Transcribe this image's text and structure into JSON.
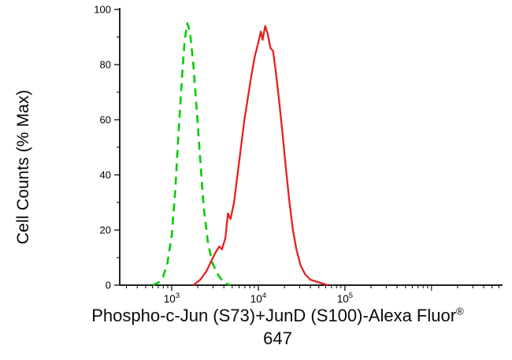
{
  "chart_data": {
    "type": "line",
    "title": "",
    "ylabel": "Cell Counts (% Max)",
    "xlabel_line1": "Phospho-c-Jun (S73)+JunD (S100)-Alexa Fluor",
    "xlabel_registered": "®",
    "xlabel_line2": "647",
    "x_scale": "log",
    "xlim_log": [
      2.4,
      6.82
    ],
    "ylim": [
      0,
      100
    ],
    "grid": false,
    "legend": false,
    "colors": {
      "control": "#00cc00",
      "sample": "#e62020",
      "axis": "#000000",
      "background": "#ffffff"
    },
    "y_ticks": [
      {
        "label": "0",
        "value": 0
      },
      {
        "label": "20",
        "value": 20
      },
      {
        "label": "40",
        "value": 40
      },
      {
        "label": "60",
        "value": 60
      },
      {
        "label": "80",
        "value": 80
      },
      {
        "label": "100",
        "value": 100
      }
    ],
    "y_minor_ticks": [
      10,
      30,
      50,
      70,
      90
    ],
    "x_ticks": [
      {
        "base": "10",
        "exp": "3",
        "log": 3
      },
      {
        "base": "10",
        "exp": "4",
        "log": 4
      },
      {
        "base": "10",
        "exp": "5",
        "log": 5
      }
    ],
    "series": [
      {
        "name": "control-dashed-green",
        "style": "dashed",
        "color": "#00cc00",
        "peak_x": 1500,
        "peak_y_pct": 95,
        "points_log_x_pct_y": [
          [
            2.78,
            0
          ],
          [
            2.85,
            1
          ],
          [
            2.9,
            3
          ],
          [
            2.95,
            8
          ],
          [
            3.0,
            18
          ],
          [
            3.04,
            34
          ],
          [
            3.08,
            56
          ],
          [
            3.12,
            76
          ],
          [
            3.15,
            89
          ],
          [
            3.18,
            95
          ],
          [
            3.21,
            92
          ],
          [
            3.25,
            80
          ],
          [
            3.29,
            63
          ],
          [
            3.33,
            45
          ],
          [
            3.37,
            28
          ],
          [
            3.42,
            15
          ],
          [
            3.47,
            8
          ],
          [
            3.53,
            4
          ],
          [
            3.6,
            1
          ],
          [
            3.68,
            0
          ]
        ]
      },
      {
        "name": "phospho-c-jun-jund-alexa647-solid-red",
        "style": "solid",
        "color": "#e62020",
        "peak_x": 12000,
        "peak_y_pct": 94,
        "points_log_x_pct_y": [
          [
            3.25,
            0
          ],
          [
            3.33,
            2
          ],
          [
            3.4,
            5
          ],
          [
            3.46,
            9
          ],
          [
            3.51,
            12
          ],
          [
            3.55,
            14
          ],
          [
            3.58,
            13
          ],
          [
            3.62,
            17
          ],
          [
            3.65,
            26
          ],
          [
            3.68,
            24
          ],
          [
            3.72,
            30
          ],
          [
            3.76,
            40
          ],
          [
            3.8,
            50
          ],
          [
            3.84,
            60
          ],
          [
            3.88,
            68
          ],
          [
            3.92,
            76
          ],
          [
            3.96,
            83
          ],
          [
            4.0,
            88
          ],
          [
            4.03,
            92
          ],
          [
            4.05,
            89
          ],
          [
            4.08,
            94
          ],
          [
            4.11,
            91
          ],
          [
            4.14,
            86
          ],
          [
            4.17,
            85
          ],
          [
            4.2,
            78
          ],
          [
            4.24,
            67
          ],
          [
            4.28,
            55
          ],
          [
            4.32,
            42
          ],
          [
            4.36,
            30
          ],
          [
            4.4,
            20
          ],
          [
            4.44,
            13
          ],
          [
            4.49,
            7
          ],
          [
            4.54,
            4
          ],
          [
            4.6,
            2
          ],
          [
            4.7,
            1
          ],
          [
            4.8,
            0
          ]
        ]
      }
    ]
  }
}
